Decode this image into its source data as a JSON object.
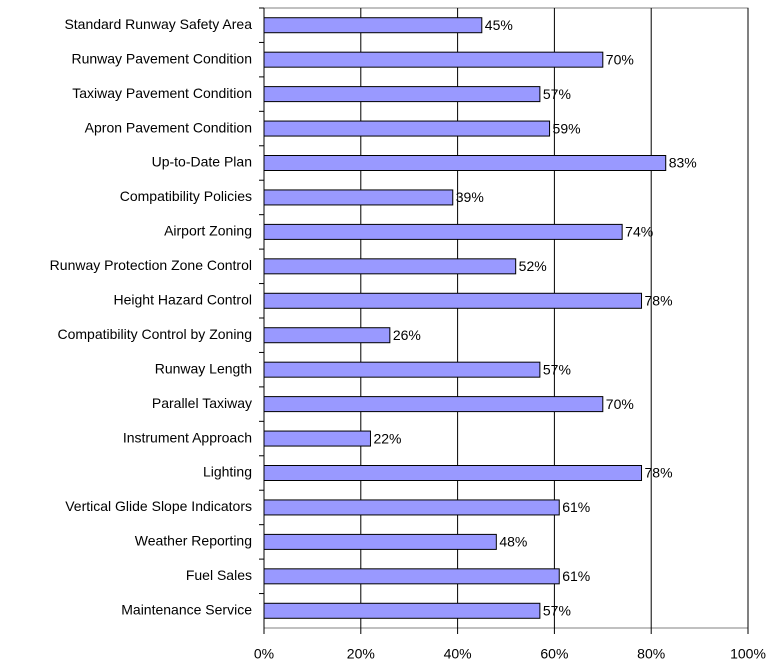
{
  "chart_data": {
    "type": "bar",
    "orientation": "horizontal",
    "categories": [
      "Standard Runway Safety Area",
      "Runway Pavement Condition",
      "Taxiway Pavement Condition",
      "Apron Pavement Condition",
      "Up-to-Date Plan",
      "Compatibility Policies",
      "Airport Zoning",
      "Runway Protection Zone Control",
      "Height Hazard Control",
      "Compatibility Control by Zoning",
      "Runway Length",
      "Parallel Taxiway",
      "Instrument Approach",
      "Lighting",
      "Vertical Glide Slope Indicators",
      "Weather Reporting",
      "Fuel Sales",
      "Maintenance Service"
    ],
    "values": [
      45,
      70,
      57,
      59,
      83,
      39,
      74,
      52,
      78,
      26,
      57,
      70,
      22,
      78,
      61,
      48,
      61,
      57
    ],
    "value_labels": [
      "45%",
      "70%",
      "57%",
      "59%",
      "83%",
      "39%",
      "74%",
      "52%",
      "78%",
      "26%",
      "57%",
      "70%",
      "22%",
      "78%",
      "61%",
      "48%",
      "61%",
      "57%"
    ],
    "color": "#9999ff",
    "xlim": [
      0,
      100
    ],
    "xticks": [
      {
        "value": 0,
        "label": "0%"
      },
      {
        "value": 20,
        "label": "20%"
      },
      {
        "value": 40,
        "label": "40%"
      },
      {
        "value": 60,
        "label": "60%"
      },
      {
        "value": 80,
        "label": "80%"
      },
      {
        "value": 100,
        "label": "100%"
      }
    ],
    "grid": true
  }
}
